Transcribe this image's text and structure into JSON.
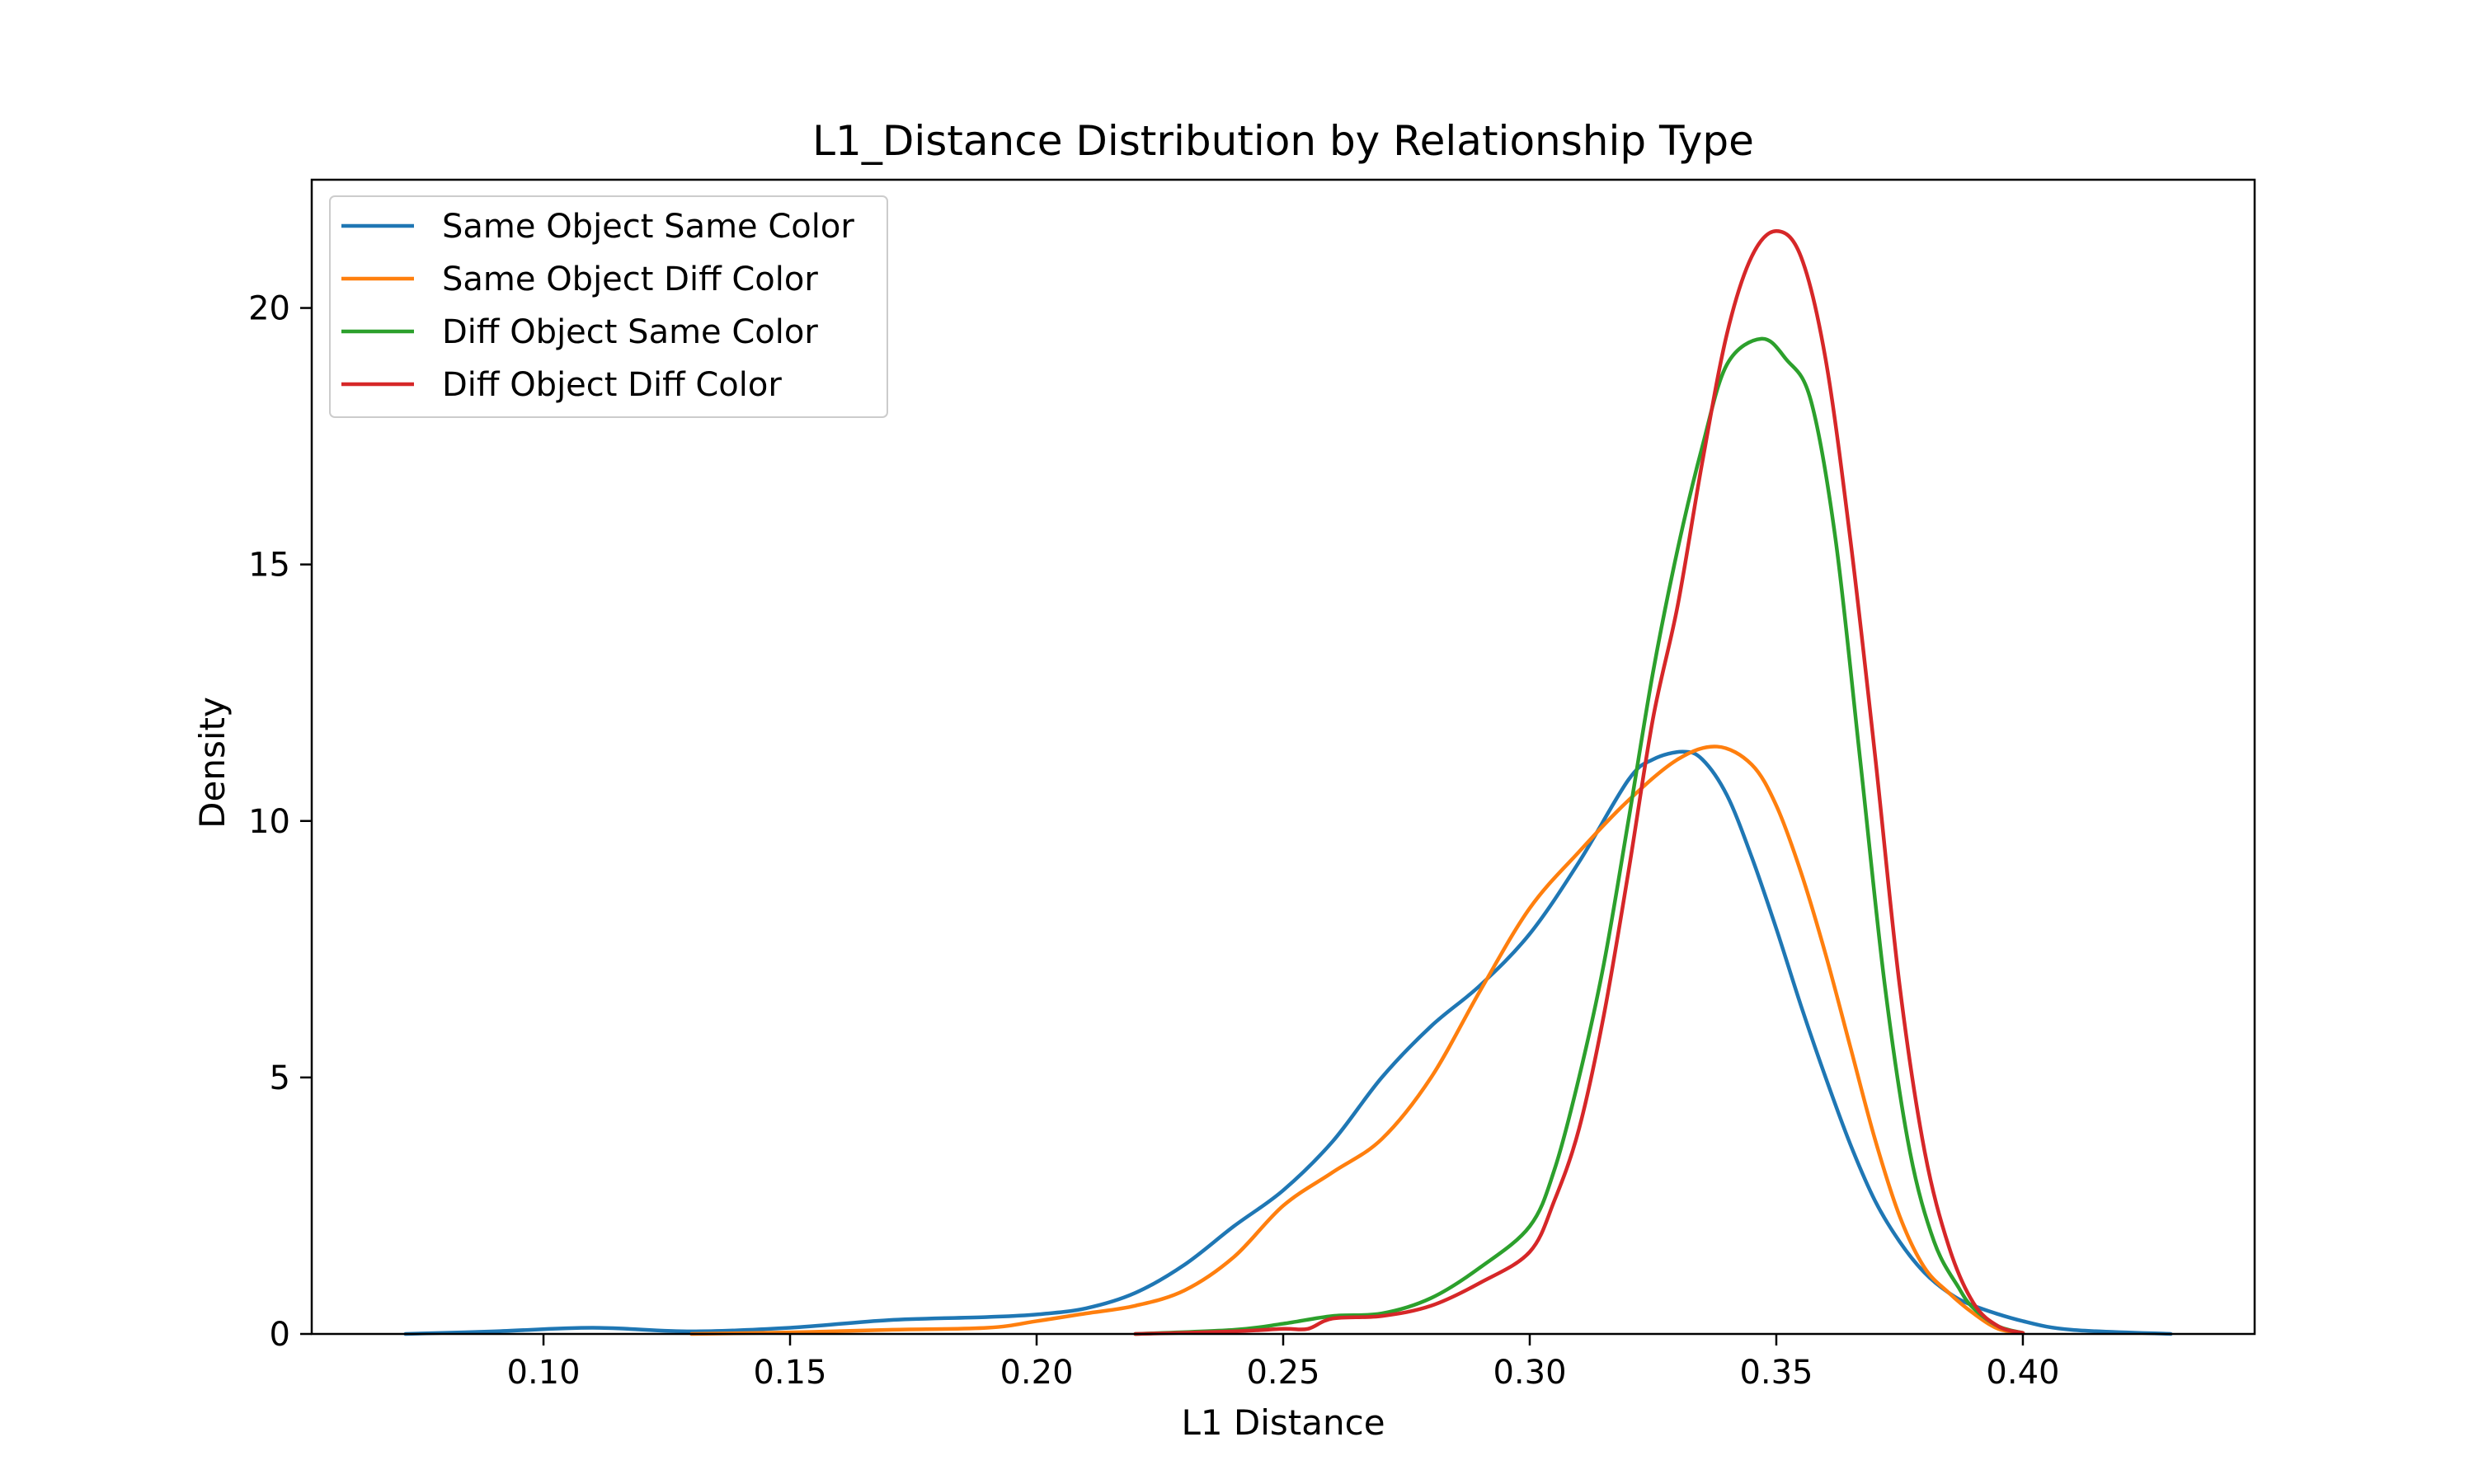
{
  "chart_data": {
    "type": "line",
    "title": "L1_Distance Distribution by Relationship Type",
    "xlabel": "L1 Distance",
    "ylabel": "Density",
    "xlim": [
      0.053,
      0.447
    ],
    "ylim": [
      0,
      22.5
    ],
    "xticks": [
      0.1,
      0.15,
      0.2,
      0.25,
      0.3,
      0.35,
      0.4
    ],
    "xtick_labels": [
      "0.10",
      "0.15",
      "0.20",
      "0.25",
      "0.30",
      "0.35",
      "0.40"
    ],
    "yticks": [
      0,
      5,
      10,
      15,
      20
    ],
    "ytick_labels": [
      "0",
      "5",
      "10",
      "15",
      "20"
    ],
    "grid": false,
    "legend_position": "top-left",
    "series": [
      {
        "name": "Same Object Same Color",
        "color": "#1f77b4",
        "x": [
          0.072,
          0.09,
          0.11,
          0.13,
          0.15,
          0.17,
          0.19,
          0.2,
          0.21,
          0.22,
          0.23,
          0.24,
          0.25,
          0.26,
          0.27,
          0.28,
          0.29,
          0.3,
          0.31,
          0.32,
          0.325,
          0.331,
          0.335,
          0.34,
          0.345,
          0.35,
          0.355,
          0.36,
          0.365,
          0.37,
          0.375,
          0.38,
          0.385,
          0.39,
          0.4,
          0.41,
          0.43
        ],
        "y": [
          0.0,
          0.05,
          0.12,
          0.05,
          0.12,
          0.27,
          0.33,
          0.38,
          0.5,
          0.8,
          1.35,
          2.1,
          2.8,
          3.75,
          5.0,
          6.0,
          6.8,
          7.8,
          9.2,
          10.8,
          11.2,
          11.35,
          11.2,
          10.5,
          9.3,
          7.9,
          6.4,
          5.0,
          3.7,
          2.6,
          1.8,
          1.2,
          0.8,
          0.55,
          0.25,
          0.08,
          0.0
        ]
      },
      {
        "name": "Same Object Diff Color",
        "color": "#ff7f0e",
        "x": [
          0.13,
          0.15,
          0.17,
          0.19,
          0.2,
          0.21,
          0.22,
          0.23,
          0.24,
          0.25,
          0.26,
          0.27,
          0.28,
          0.29,
          0.3,
          0.31,
          0.32,
          0.33,
          0.338,
          0.345,
          0.35,
          0.355,
          0.36,
          0.365,
          0.37,
          0.375,
          0.38,
          0.385,
          0.39,
          0.395,
          0.4
        ],
        "y": [
          0.0,
          0.03,
          0.08,
          0.12,
          0.25,
          0.4,
          0.55,
          0.85,
          1.5,
          2.5,
          3.15,
          3.8,
          5.0,
          6.7,
          8.3,
          9.4,
          10.4,
          11.2,
          11.45,
          11.1,
          10.3,
          9.0,
          7.4,
          5.6,
          3.8,
          2.3,
          1.3,
          0.8,
          0.4,
          0.1,
          0.02
        ]
      },
      {
        "name": "Diff Object Same Color",
        "color": "#2ca02c",
        "x": [
          0.22,
          0.24,
          0.25,
          0.26,
          0.27,
          0.28,
          0.29,
          0.3,
          0.305,
          0.31,
          0.315,
          0.32,
          0.325,
          0.33,
          0.335,
          0.34,
          0.347,
          0.352,
          0.357,
          0.362,
          0.367,
          0.372,
          0.377,
          0.382,
          0.387,
          0.39,
          0.395,
          0.4
        ],
        "y": [
          0.0,
          0.08,
          0.2,
          0.35,
          0.4,
          0.7,
          1.3,
          2.1,
          3.2,
          5.0,
          7.2,
          10.0,
          12.9,
          15.3,
          17.3,
          18.9,
          19.4,
          19.0,
          18.2,
          15.5,
          11.2,
          6.8,
          3.6,
          1.8,
          0.9,
          0.5,
          0.15,
          0.02
        ]
      },
      {
        "name": "Diff Object Diff Color",
        "color": "#d62728",
        "x": [
          0.22,
          0.24,
          0.25,
          0.255,
          0.26,
          0.27,
          0.28,
          0.29,
          0.3,
          0.305,
          0.31,
          0.315,
          0.32,
          0.325,
          0.33,
          0.335,
          0.34,
          0.345,
          0.35,
          0.355,
          0.36,
          0.365,
          0.37,
          0.375,
          0.38,
          0.385,
          0.39,
          0.395,
          0.4
        ],
        "y": [
          0.0,
          0.05,
          0.1,
          0.1,
          0.3,
          0.35,
          0.55,
          1.0,
          1.6,
          2.6,
          4.0,
          6.2,
          9.0,
          12.0,
          14.2,
          17.0,
          19.5,
          21.0,
          21.5,
          21.0,
          19.0,
          15.5,
          11.3,
          6.8,
          3.6,
          1.7,
          0.6,
          0.15,
          0.02
        ]
      }
    ]
  }
}
